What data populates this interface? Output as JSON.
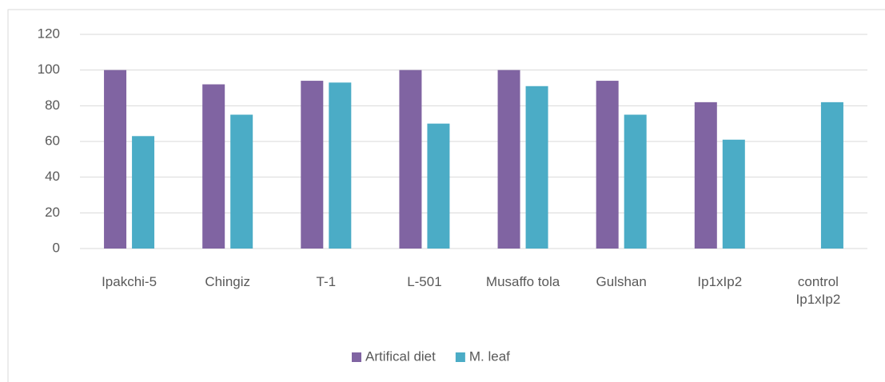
{
  "chart_data": {
    "type": "bar",
    "categories": [
      "Ipakchi-5",
      "Chingiz",
      "T-1",
      "L-501",
      "Musaffo tola",
      "Gulshan",
      "Ip1xIp2",
      "control Ip1xIp2"
    ],
    "series": [
      {
        "name": "Artifical diet",
        "color": "#8064a2",
        "values": [
          100,
          92,
          94,
          100,
          100,
          94,
          82,
          null
        ]
      },
      {
        "name": "M. leaf",
        "color": "#4bacc6",
        "values": [
          63,
          75,
          93,
          70,
          91,
          75,
          61,
          82
        ]
      }
    ],
    "ylim": [
      0,
      120
    ],
    "yticks": [
      0,
      20,
      40,
      60,
      80,
      100,
      120
    ],
    "grid": true,
    "legend": "bottom"
  }
}
